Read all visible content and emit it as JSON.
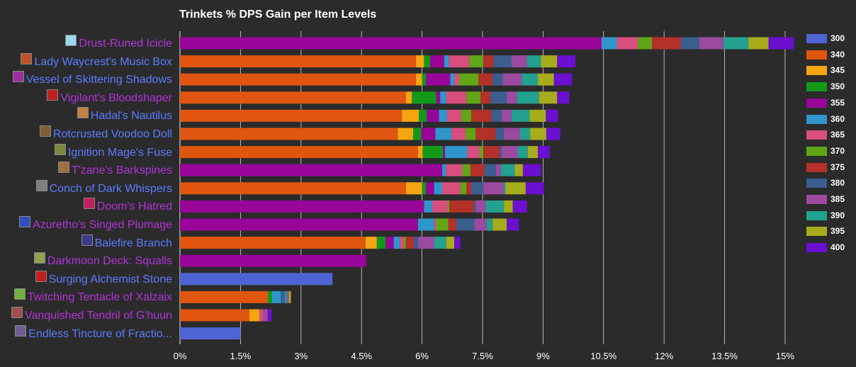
{
  "chart_data": {
    "type": "bar",
    "orientation": "horizontal",
    "stacked": true,
    "title": "Trinkets % DPS Gain per Item Levels",
    "xlim": [
      0,
      15.75
    ],
    "xticks": [
      "0%",
      "1.5%",
      "3%",
      "4.5%",
      "6%",
      "7.5%",
      "9%",
      "10.5%",
      "12%",
      "13.5%",
      "15%"
    ],
    "grid": true,
    "legend_position": "right",
    "legend_labels": [
      "300",
      "340",
      "345",
      "350",
      "355",
      "360",
      "365",
      "370",
      "375",
      "380",
      "385",
      "390",
      "395",
      "400"
    ],
    "colors": {
      "300": "#4f64d4",
      "340": "#e0550f",
      "345": "#f5a511",
      "350": "#12991a",
      "355": "#990599",
      "360": "#2f96cc",
      "365": "#d84f7e",
      "370": "#60a617",
      "375": "#b33129",
      "380": "#3a5f8f",
      "385": "#9c4aa0",
      "390": "#23a08e",
      "395": "#a7ac1a",
      "400": "#6b0fd0"
    },
    "categories": [
      {
        "name": "Drust-Runed Icicle",
        "label_color": "#b133d9",
        "icon": "ice-icon",
        "icon_color": "#9ad8f0",
        "segments": [
          [
            "355",
            10.45
          ],
          [
            "360",
            0.38
          ],
          [
            "365",
            0.52
          ],
          [
            "370",
            0.35
          ],
          [
            "375",
            0.72
          ],
          [
            "380",
            0.45
          ],
          [
            "385",
            0.6
          ],
          [
            "390",
            0.62
          ],
          [
            "395",
            0.5
          ],
          [
            "400",
            0.63
          ]
        ]
      },
      {
        "name": "Lady Waycrest's Music Box",
        "label_color": "#5b7bff",
        "icon": "music-box-icon",
        "icon_color": "#c0522b",
        "segments": [
          [
            "340",
            5.85
          ],
          [
            "345",
            0.2
          ],
          [
            "350",
            0.15
          ],
          [
            "355",
            0.35
          ],
          [
            "360",
            0.12
          ],
          [
            "365",
            0.5
          ],
          [
            "370",
            0.35
          ],
          [
            "375",
            0.25
          ],
          [
            "380",
            0.45
          ],
          [
            "385",
            0.38
          ],
          [
            "390",
            0.35
          ],
          [
            "395",
            0.4
          ],
          [
            "400",
            0.45
          ]
        ]
      },
      {
        "name": "Vessel of Skittering Shadows",
        "label_color": "#5b7bff",
        "icon": "vessel-icon",
        "icon_color": "#9a2fa0",
        "segments": [
          [
            "340",
            5.85
          ],
          [
            "345",
            0.15
          ],
          [
            "350",
            0.1
          ],
          [
            "355",
            0.6
          ],
          [
            "360",
            0.1
          ],
          [
            "365",
            0.12
          ],
          [
            "370",
            0.48
          ],
          [
            "375",
            0.35
          ],
          [
            "380",
            0.25
          ],
          [
            "385",
            0.47
          ],
          [
            "390",
            0.4
          ],
          [
            "395",
            0.4
          ],
          [
            "400",
            0.45
          ]
        ]
      },
      {
        "name": "Vigilant's Bloodshaper",
        "label_color": "#b133d9",
        "icon": "blood-icon",
        "icon_color": "#c02020",
        "segments": [
          [
            "340",
            5.6
          ],
          [
            "345",
            0.15
          ],
          [
            "350",
            0.6
          ],
          [
            "355",
            0.1
          ],
          [
            "360",
            0.15
          ],
          [
            "365",
            0.5
          ],
          [
            "370",
            0.35
          ],
          [
            "375",
            0.25
          ],
          [
            "380",
            0.4
          ],
          [
            "385",
            0.25
          ],
          [
            "390",
            0.55
          ],
          [
            "395",
            0.45
          ],
          [
            "400",
            0.3
          ]
        ]
      },
      {
        "name": "Hadal's Nautilus",
        "label_color": "#5b7bff",
        "icon": "nautilus-icon",
        "icon_color": "#c08040",
        "segments": [
          [
            "340",
            5.5
          ],
          [
            "345",
            0.42
          ],
          [
            "350",
            0.2
          ],
          [
            "355",
            0.3
          ],
          [
            "360",
            0.2
          ],
          [
            "365",
            0.35
          ],
          [
            "370",
            0.25
          ],
          [
            "375",
            0.5
          ],
          [
            "380",
            0.25
          ],
          [
            "385",
            0.25
          ],
          [
            "390",
            0.45
          ],
          [
            "395",
            0.4
          ],
          [
            "400",
            0.3
          ]
        ]
      },
      {
        "name": "Rotcrusted Voodoo Doll",
        "label_color": "#5b7bff",
        "icon": "voodoo-doll-icon",
        "icon_color": "#806030",
        "segments": [
          [
            "340",
            5.4
          ],
          [
            "345",
            0.38
          ],
          [
            "350",
            0.2
          ],
          [
            "355",
            0.35
          ],
          [
            "360",
            0.4
          ],
          [
            "365",
            0.35
          ],
          [
            "370",
            0.25
          ],
          [
            "375",
            0.5
          ],
          [
            "380",
            0.2
          ],
          [
            "385",
            0.4
          ],
          [
            "390",
            0.25
          ],
          [
            "395",
            0.4
          ],
          [
            "400",
            0.35
          ]
        ]
      },
      {
        "name": "Ignition Mage's Fuse",
        "label_color": "#5b7bff",
        "icon": "fuse-icon",
        "icon_color": "#7a8a40",
        "segments": [
          [
            "340",
            5.9
          ],
          [
            "345",
            0.12
          ],
          [
            "350",
            0.5
          ],
          [
            "355",
            0.05
          ],
          [
            "360",
            0.55
          ],
          [
            "365",
            0.3
          ],
          [
            "370",
            0.1
          ],
          [
            "375",
            0.4
          ],
          [
            "380",
            0.05
          ],
          [
            "385",
            0.4
          ],
          [
            "390",
            0.25
          ],
          [
            "395",
            0.25
          ],
          [
            "400",
            0.3
          ]
        ]
      },
      {
        "name": "T'zane's Barkspines",
        "label_color": "#b133d9",
        "icon": "barkspines-icon",
        "icon_color": "#a07040",
        "segments": [
          [
            "355",
            6.5
          ],
          [
            "360",
            0.1
          ],
          [
            "365",
            0.4
          ],
          [
            "370",
            0.2
          ],
          [
            "375",
            0.35
          ],
          [
            "380",
            0.28
          ],
          [
            "385",
            0.12
          ],
          [
            "390",
            0.35
          ],
          [
            "395",
            0.2
          ],
          [
            "400",
            0.45
          ]
        ]
      },
      {
        "name": "Conch of Dark Whispers",
        "label_color": "#5b7bff",
        "icon": "conch-icon",
        "icon_color": "#808080",
        "segments": [
          [
            "340",
            5.6
          ],
          [
            "345",
            0.4
          ],
          [
            "350",
            0.1
          ],
          [
            "355",
            0.2
          ],
          [
            "360",
            0.2
          ],
          [
            "365",
            0.45
          ],
          [
            "370",
            0.15
          ],
          [
            "375",
            0.12
          ],
          [
            "380",
            0.3
          ],
          [
            "385",
            0.5
          ],
          [
            "390",
            0.05
          ],
          [
            "395",
            0.5
          ],
          [
            "400",
            0.45
          ]
        ]
      },
      {
        "name": "Doom's Hatred",
        "label_color": "#b133d9",
        "icon": "hatred-icon",
        "icon_color": "#c02060",
        "segments": [
          [
            "355",
            6.05
          ],
          [
            "360",
            0.2
          ],
          [
            "365",
            0.38
          ],
          [
            "370",
            0.05
          ],
          [
            "375",
            0.6
          ],
          [
            "380",
            0.05
          ],
          [
            "385",
            0.25
          ],
          [
            "390",
            0.45
          ],
          [
            "395",
            0.22
          ],
          [
            "400",
            0.35
          ]
        ]
      },
      {
        "name": "Azuretho's Singed Plumage",
        "label_color": "#b133d9",
        "icon": "plumage-icon",
        "icon_color": "#3050c0",
        "segments": [
          [
            "355",
            5.9
          ],
          [
            "360",
            0.4
          ],
          [
            "365",
            0.05
          ],
          [
            "370",
            0.3
          ],
          [
            "375",
            0.2
          ],
          [
            "380",
            0.45
          ],
          [
            "385",
            0.3
          ],
          [
            "390",
            0.15
          ],
          [
            "395",
            0.35
          ],
          [
            "400",
            0.3
          ]
        ]
      },
      {
        "name": "Balefire Branch",
        "label_color": "#5b7bff",
        "icon": "branch-icon",
        "icon_color": "#3a3a90",
        "segments": [
          [
            "340",
            4.6
          ],
          [
            "345",
            0.28
          ],
          [
            "350",
            0.22
          ],
          [
            "355",
            0.2
          ],
          [
            "360",
            0.15
          ],
          [
            "365",
            0.1
          ],
          [
            "370",
            0.05
          ],
          [
            "375",
            0.2
          ],
          [
            "380",
            0.1
          ],
          [
            "385",
            0.4
          ],
          [
            "390",
            0.3
          ],
          [
            "395",
            0.2
          ],
          [
            "400",
            0.15
          ]
        ]
      },
      {
        "name": "Darkmoon Deck: Squalls",
        "label_color": "#b133d9",
        "icon": "card-icon",
        "icon_color": "#90a050",
        "segments": [
          [
            "355",
            4.62
          ]
        ]
      },
      {
        "name": "Surging Alchemist Stone",
        "label_color": "#5b7bff",
        "icon": "stone-icon",
        "icon_color": "#c02020",
        "segments": [
          [
            "300",
            3.78
          ]
        ]
      },
      {
        "name": "Twitching Tentacle of Xalzaix",
        "label_color": "#b133d9",
        "icon": "tentacle-icon",
        "icon_color": "#70b040",
        "segments": [
          [
            "340",
            2.18
          ],
          [
            "350",
            0.1
          ],
          [
            "360",
            0.22
          ],
          [
            "380",
            0.1
          ],
          [
            "390",
            0.05
          ],
          [
            "385",
            0.05
          ],
          [
            "395",
            0.05
          ]
        ]
      },
      {
        "name": "Vanquished Tendril of G'huun",
        "label_color": "#b133d9",
        "icon": "tendril-icon",
        "icon_color": "#a05050",
        "segments": [
          [
            "340",
            1.72
          ],
          [
            "345",
            0.25
          ],
          [
            "365",
            0.1
          ],
          [
            "385",
            0.1
          ],
          [
            "400",
            0.1
          ]
        ]
      },
      {
        "name": "Endless Tincture of Fractio...",
        "label_color": "#5b7bff",
        "icon": "tincture-icon",
        "icon_color": "#706090",
        "segments": [
          [
            "300",
            1.5
          ]
        ]
      }
    ]
  }
}
